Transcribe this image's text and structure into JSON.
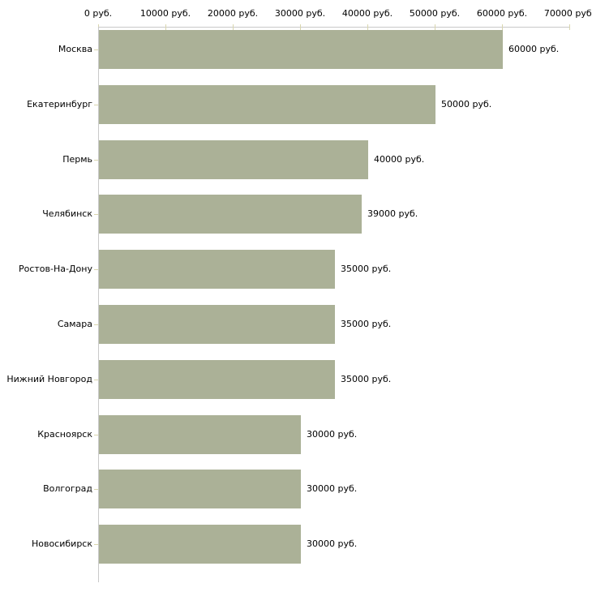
{
  "chart_data": {
    "type": "bar",
    "orientation": "horizontal",
    "title": "",
    "xlabel": "",
    "ylabel": "",
    "unit": "руб.",
    "categories": [
      "Москва",
      "Екатеринбург",
      "Пермь",
      "Челябинск",
      "Ростов-На-Дону",
      "Самара",
      "Нижний Новгород",
      "Красноярск",
      "Волгоград",
      "Новосибирск"
    ],
    "values": [
      60000,
      50000,
      40000,
      39000,
      35000,
      35000,
      35000,
      30000,
      30000,
      30000
    ],
    "value_labels": [
      "60000 руб.",
      "50000 руб.",
      "40000 руб.",
      "39000 руб.",
      "35000 руб.",
      "35000 руб.",
      "35000 руб.",
      "30000 руб.",
      "30000 руб.",
      "30000 руб."
    ],
    "x_ticks": [
      0,
      10000,
      20000,
      30000,
      40000,
      50000,
      60000,
      70000
    ],
    "x_tick_labels": [
      "0 руб.",
      "10000 руб.",
      "20000 руб.",
      "30000 руб.",
      "40000 руб.",
      "50000 руб.",
      "60000 руб.",
      "70000 руб."
    ],
    "xlim": [
      0,
      70000
    ],
    "legend": null,
    "grid": false,
    "colors": {
      "bar": "#abb197",
      "axis_line": "#c9c9c9",
      "tick": "#d9d6ae",
      "text": "#000000",
      "background": "#ffffff"
    }
  }
}
